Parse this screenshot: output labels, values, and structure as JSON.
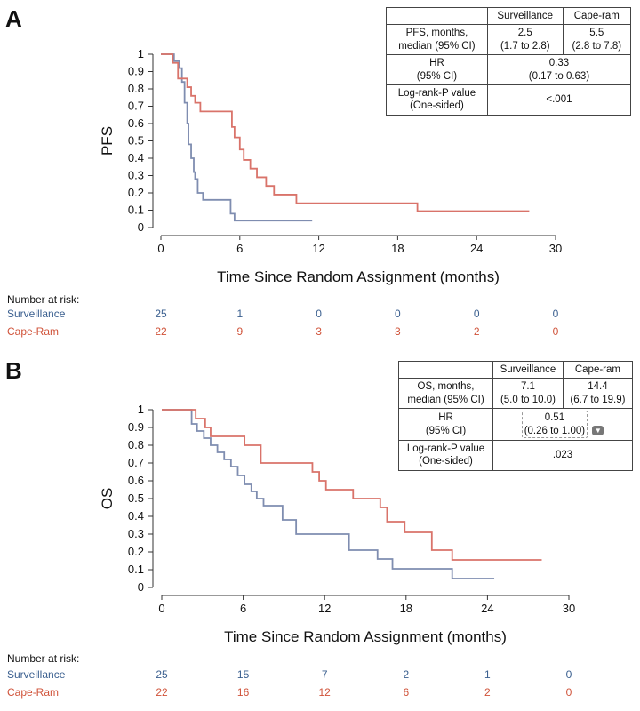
{
  "chart_data": [
    {
      "panel": "A",
      "type": "line",
      "ylabel": "PFS",
      "xlabel": "Time Since Random Assignment (months)",
      "xlim": [
        0,
        30
      ],
      "ylim": [
        0,
        1
      ],
      "xticks": [
        "0",
        "6",
        "12",
        "18",
        "24",
        "30"
      ],
      "yticks": [
        "0",
        "0.1",
        "0.2",
        "0.3",
        "0.4",
        "0.5",
        "0.6",
        "0.7",
        "0.8",
        "0.9",
        "1"
      ],
      "series": [
        {
          "name": "Surveillance",
          "color": "#7f8db0",
          "x": [
            0,
            1.0,
            1.4,
            1.6,
            1.8,
            2.0,
            2.1,
            2.3,
            2.5,
            2.6,
            2.8,
            3.2,
            4.0,
            5.3,
            5.6,
            11.5
          ],
          "y": [
            1,
            0.96,
            0.92,
            0.84,
            0.72,
            0.6,
            0.48,
            0.4,
            0.32,
            0.28,
            0.2,
            0.16,
            0.16,
            0.08,
            0.04,
            0.04
          ]
        },
        {
          "name": "Cape-Ram",
          "color": "#d9736a",
          "x": [
            0,
            0.9,
            1.3,
            2.0,
            2.3,
            2.6,
            3.0,
            5.4,
            5.6,
            6.0,
            6.3,
            6.8,
            7.3,
            8.0,
            8.6,
            10.3,
            19.5,
            28.0
          ],
          "y": [
            1,
            0.95,
            0.86,
            0.81,
            0.76,
            0.72,
            0.67,
            0.58,
            0.52,
            0.45,
            0.39,
            0.34,
            0.29,
            0.24,
            0.19,
            0.14,
            0.095,
            0.095
          ]
        }
      ],
      "stats_table": {
        "headers": [
          "",
          "Surveillance",
          "Cape-ram"
        ],
        "rows": [
          {
            "label": "PFS, months,\nmedian (95% CI)",
            "surv": "2.5\n(1.7 to 2.8)",
            "cape": "5.5\n(2.8 to 7.8)"
          },
          {
            "label": "HR\n(95% CI)",
            "span": "0.33\n(0.17 to 0.63)"
          },
          {
            "label": "Log-rank-P value\n(One-sided)",
            "span": "<.001"
          }
        ]
      },
      "risk": {
        "title": "Number at risk:",
        "rows": [
          {
            "label": "Surveillance",
            "values": [
              "25",
              "1",
              "0",
              "0",
              "0",
              "0"
            ]
          },
          {
            "label": "Cape-Ram",
            "values": [
              "22",
              "9",
              "3",
              "3",
              "2",
              "0"
            ]
          }
        ]
      }
    },
    {
      "panel": "B",
      "type": "line",
      "ylabel": "OS",
      "xlabel": "Time Since Random Assignment (months)",
      "xlim": [
        0,
        30
      ],
      "ylim": [
        0,
        1
      ],
      "xticks": [
        "0",
        "6",
        "12",
        "18",
        "24",
        "30"
      ],
      "yticks": [
        "0",
        "0.1",
        "0.2",
        "0.3",
        "0.4",
        "0.5",
        "0.6",
        "0.7",
        "0.8",
        "0.9",
        "1"
      ],
      "series": [
        {
          "name": "Surveillance",
          "color": "#7f8db0",
          "x": [
            0,
            2.2,
            2.6,
            3.1,
            3.6,
            4.1,
            4.6,
            5.1,
            5.6,
            6.1,
            6.6,
            7.0,
            7.5,
            8.9,
            9.9,
            13.8,
            15.9,
            17.0,
            21.4,
            24.5
          ],
          "y": [
            1,
            0.92,
            0.88,
            0.84,
            0.8,
            0.76,
            0.72,
            0.68,
            0.63,
            0.58,
            0.54,
            0.5,
            0.46,
            0.38,
            0.3,
            0.21,
            0.16,
            0.105,
            0.05,
            0.05
          ]
        },
        {
          "name": "Cape-Ram",
          "color": "#d9736a",
          "x": [
            0,
            2.5,
            3.2,
            3.6,
            4.1,
            6.1,
            7.3,
            11.1,
            11.6,
            12.1,
            14.1,
            16.1,
            16.6,
            17.9,
            19.9,
            21.4,
            28.0
          ],
          "y": [
            1,
            0.95,
            0.9,
            0.85,
            0.85,
            0.8,
            0.7,
            0.65,
            0.6,
            0.55,
            0.5,
            0.45,
            0.37,
            0.31,
            0.21,
            0.155,
            0.155
          ]
        }
      ],
      "stats_table": {
        "headers": [
          "",
          "Surveillance",
          "Cape-ram"
        ],
        "rows": [
          {
            "label": "OS, months,\nmedian (95% CI)",
            "surv": "7.1\n(5.0 to 10.0)",
            "cape": "14.4\n(6.7 to 19.9)"
          },
          {
            "label": "HR\n(95% CI)",
            "span": "0.51\n(0.26 to 1.00)"
          },
          {
            "label": "Log-rank-P value\n(One-sided)",
            "span": ".023"
          }
        ]
      },
      "risk": {
        "title": "Number at risk:",
        "rows": [
          {
            "label": "Surveillance",
            "values": [
              "25",
              "15",
              "7",
              "2",
              "1",
              "0"
            ]
          },
          {
            "label": "Cape-Ram",
            "values": [
              "22",
              "16",
              "12",
              "6",
              "2",
              "0"
            ]
          }
        ]
      }
    }
  ]
}
